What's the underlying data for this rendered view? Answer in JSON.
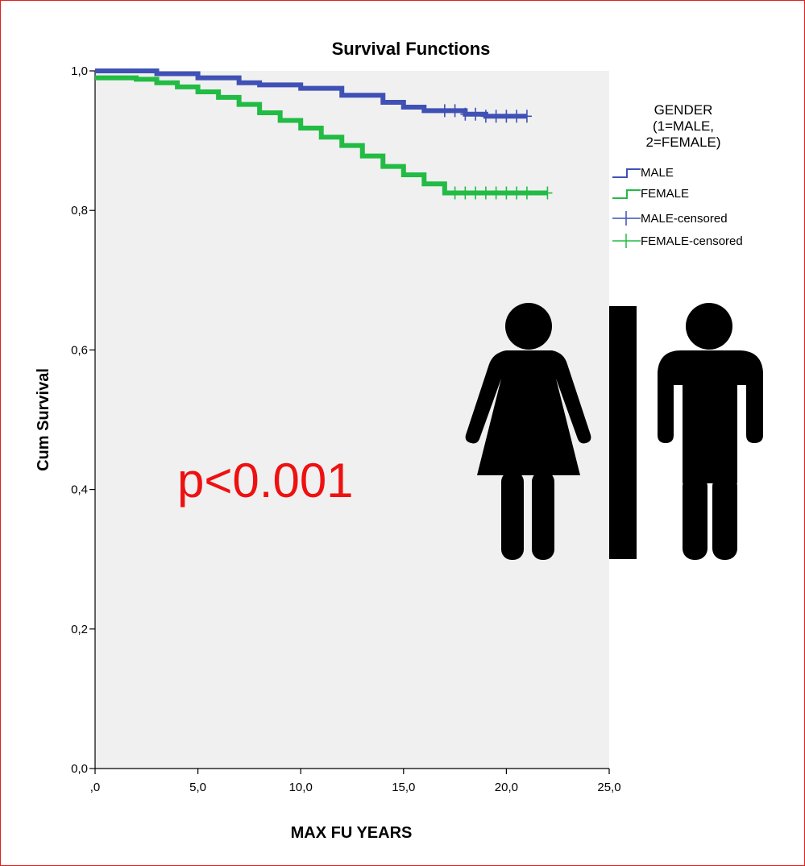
{
  "chart_data": {
    "type": "line",
    "title": "Survival Functions",
    "xlabel": "MAX FU YEARS",
    "ylabel": "Cum Survival",
    "xlim": [
      0,
      25
    ],
    "ylim": [
      0,
      1
    ],
    "x_ticks": [
      ",0",
      "5,0",
      "10,0",
      "15,0",
      "20,0",
      "25,0"
    ],
    "y_ticks": [
      "0,0",
      "0,2",
      "0,4",
      "0,6",
      "0,8",
      "1,0"
    ],
    "grid": false,
    "legend_placement": "right",
    "legend_title": [
      "GENDER",
      "(1=MALE,",
      "2=FEMALE)"
    ],
    "legend": [
      "MALE",
      "FEMALE",
      "MALE-censored",
      "FEMALE-censored"
    ],
    "colors": {
      "male": "#3f51b5",
      "female": "#22bb44",
      "plot_bg": "#f0f0f0",
      "annotation": "#ee1111"
    },
    "series": [
      {
        "name": "MALE",
        "x": [
          0,
          2.5,
          3,
          5,
          7,
          8,
          10,
          12,
          14,
          15,
          16,
          18,
          19,
          21
        ],
        "y": [
          1.0,
          1.0,
          0.996,
          0.99,
          0.983,
          0.98,
          0.975,
          0.965,
          0.955,
          0.948,
          0.943,
          0.938,
          0.935,
          0.935
        ],
        "censored_x": [
          17.0,
          17.5,
          18.0,
          18.5,
          19.0,
          19.5,
          20.0,
          20.5,
          21.0
        ]
      },
      {
        "name": "FEMALE",
        "x": [
          0,
          1,
          2,
          3,
          4,
          5,
          6,
          7,
          8,
          9,
          10,
          11,
          12,
          13,
          14,
          15,
          16,
          17,
          18,
          22
        ],
        "y": [
          0.99,
          0.99,
          0.988,
          0.983,
          0.977,
          0.97,
          0.962,
          0.952,
          0.94,
          0.929,
          0.918,
          0.905,
          0.893,
          0.878,
          0.863,
          0.851,
          0.838,
          0.825,
          0.825,
          0.825
        ],
        "censored_x": [
          17.5,
          18.0,
          18.5,
          19.0,
          19.5,
          20.0,
          20.5,
          21.0,
          22.0
        ]
      }
    ],
    "annotations": [
      "p<0.001"
    ]
  },
  "icons": [
    "female-person-icon",
    "male-person-icon"
  ]
}
